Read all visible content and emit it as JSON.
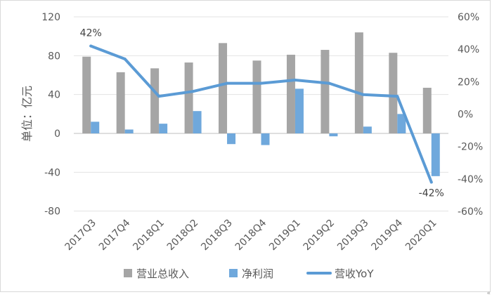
{
  "chart_data": {
    "type": "bar",
    "title": "",
    "categories": [
      "2017Q3",
      "2017Q4",
      "2018Q1",
      "2018Q2",
      "2018Q3",
      "2018Q4",
      "2019Q1",
      "2019Q2",
      "2019Q3",
      "2019Q4",
      "2020Q1"
    ],
    "ylabel": "单位：亿元",
    "y2label": "",
    "ylim": [
      -80,
      120
    ],
    "yticks": [
      -80,
      -40,
      0,
      40,
      80,
      120
    ],
    "ytick_labels": [
      "-80",
      "-40",
      "0",
      "40",
      "80",
      "120"
    ],
    "y2lim": [
      -60,
      60
    ],
    "y2ticks": [
      -60,
      -40,
      -20,
      0,
      20,
      40,
      60
    ],
    "y2tick_labels": [
      "-60%",
      "-40%",
      "-20%",
      "0%",
      "20%",
      "40%",
      "60%"
    ],
    "grid": true,
    "legend_position": "bottom",
    "series": [
      {
        "name": "营业总收入",
        "type": "bar",
        "axis": "left",
        "color": "#a5a5a5",
        "values": [
          79,
          63,
          67,
          73,
          93,
          75,
          81,
          86,
          104,
          83,
          47
        ]
      },
      {
        "name": "净利润",
        "type": "bar",
        "axis": "left",
        "color": "#6fa8dc",
        "values": [
          12,
          4,
          10,
          23,
          -11,
          -12,
          46,
          -3,
          7,
          20,
          -44
        ]
      },
      {
        "name": "营收YoY",
        "type": "line",
        "axis": "right",
        "color": "#5b9bd5",
        "values": [
          42,
          34,
          11,
          14,
          19,
          19,
          21,
          19,
          12,
          11,
          -42
        ]
      }
    ],
    "annotations": [
      {
        "series": "营收YoY",
        "index": 0,
        "text": "42%"
      },
      {
        "series": "营收YoY",
        "index": 10,
        "text": "-42%"
      }
    ]
  },
  "decor": {
    "corner_mark": "«"
  }
}
